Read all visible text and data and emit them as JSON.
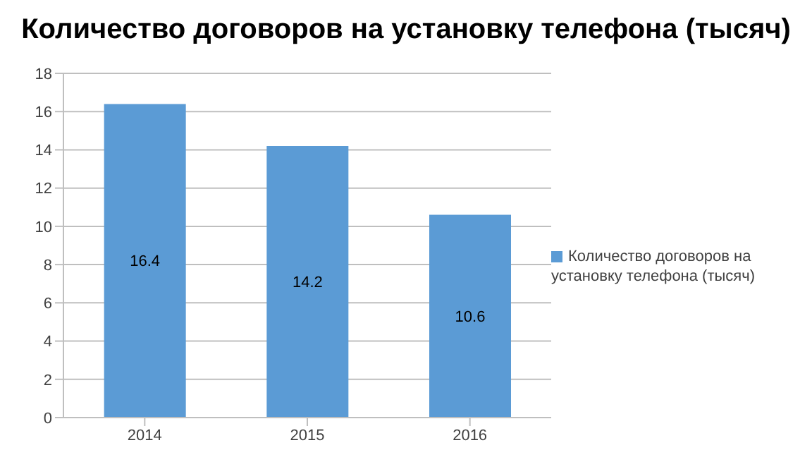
{
  "chart_data": {
    "type": "bar",
    "title": "Количество договоров на установку телефона (тысяч)",
    "categories": [
      "2014",
      "2015",
      "2016"
    ],
    "series": [
      {
        "name": "Количество договоров на установку телефона (тысяч)",
        "color": "#5b9bd5",
        "values": [
          16.4,
          14.2,
          10.6
        ]
      }
    ],
    "ylim": [
      0,
      18
    ],
    "yticks": [
      0,
      2,
      4,
      6,
      8,
      10,
      12,
      14,
      16,
      18
    ],
    "grid": "y",
    "legend": "right",
    "data_labels": true
  }
}
